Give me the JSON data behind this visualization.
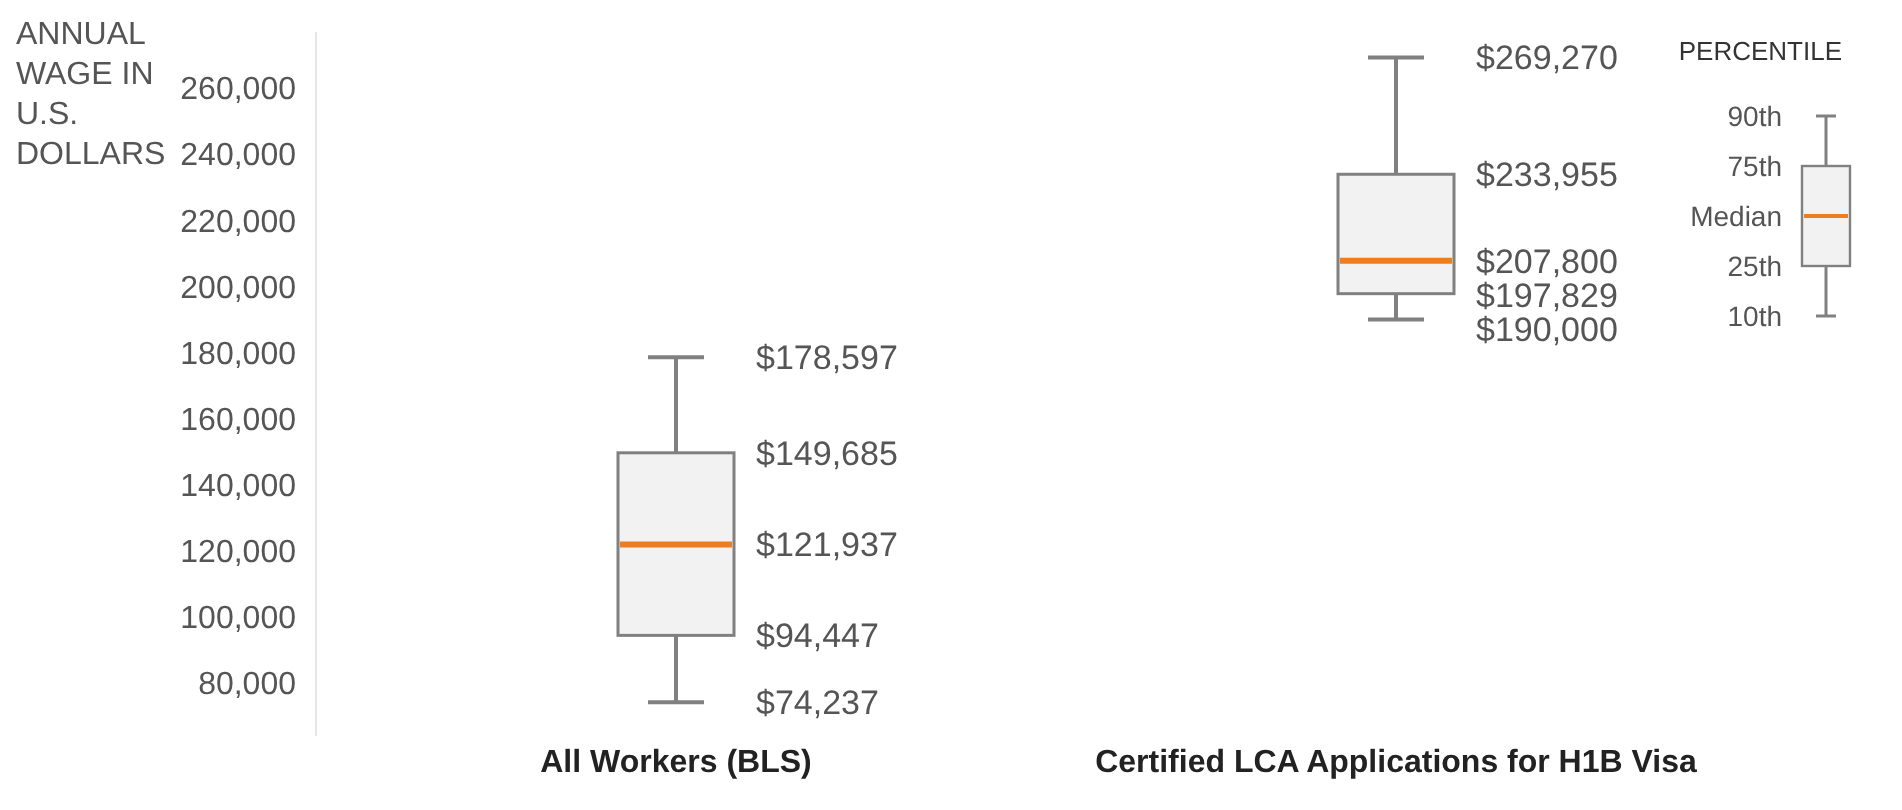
{
  "chart_data": {
    "type": "box",
    "ylabel": "ANNUAL WAGE IN U.S. DOLLARS",
    "legend_title": "PERCENTILE",
    "categories": [
      "All Workers (BLS)",
      "Certified LCA Applications for H1B Visa"
    ],
    "boxes": [
      {
        "low": 74237,
        "q1": 94447,
        "median": 121937,
        "q3": 149685,
        "high": 178597
      },
      {
        "low": 190000,
        "q1": 197829,
        "median": 207800,
        "q3": 233955,
        "high": 269270
      }
    ],
    "color": "#f2f2f2",
    "ylim": [
      64000,
      277000
    ],
    "yticks": [
      {
        "value": 80000,
        "label": "80,000"
      },
      {
        "value": 100000,
        "label": "100,000"
      },
      {
        "value": 120000,
        "label": "120,000"
      },
      {
        "value": 140000,
        "label": "140,000"
      },
      {
        "value": 160000,
        "label": "160,000"
      },
      {
        "value": 180000,
        "label": "180,000"
      },
      {
        "value": 200000,
        "label": "200,000"
      },
      {
        "value": 220000,
        "label": "220,000"
      },
      {
        "value": 240000,
        "label": "240,000"
      },
      {
        "value": 260000,
        "label": "260,000"
      }
    ],
    "grid": false,
    "annotations": [
      "90th",
      "75th",
      "Median",
      "25th",
      "10th",
      {
        "text": "$178,597",
        "x": "All Workers (BLS)",
        "y": 178597
      },
      {
        "text": "$149,685",
        "x": "All Workers (BLS)",
        "y": 149685
      },
      {
        "text": "$121,937",
        "x": "All Workers (BLS)",
        "y": 121937
      },
      {
        "text": "$94,447",
        "x": "All Workers (BLS)",
        "y": 94447
      },
      {
        "text": "$74,237",
        "x": "All Workers (BLS)",
        "y": 74237
      },
      {
        "text": "$269,270",
        "x": "Certified LCA Applications for H1B Visa",
        "y": 269270
      },
      {
        "text": "$233,955",
        "x": "Certified LCA Applications for H1B Visa",
        "y": 233955
      },
      {
        "text": "$207,800",
        "x": "Certified LCA Applications for H1B Visa",
        "y": 207800
      },
      {
        "text": "$197,829",
        "x": "Certified LCA Applications for H1B Visa",
        "y": 197829
      },
      {
        "text": "$190,000",
        "x": "Certified LCA Applications for H1B Visa",
        "y": 190000
      }
    ]
  }
}
